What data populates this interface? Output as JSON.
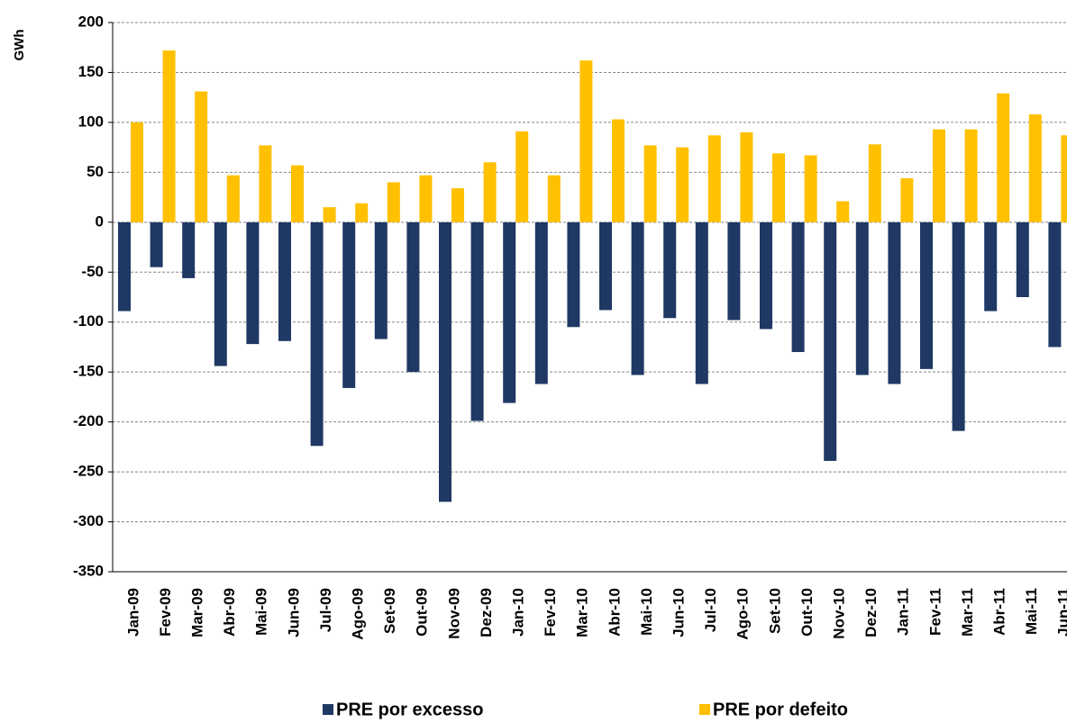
{
  "chart_data": {
    "type": "bar",
    "y_label": "GWh",
    "categories": [
      "Jan-09",
      "Fev-09",
      "Mar-09",
      "Abr-09",
      "Mai-09",
      "Jun-09",
      "Jul-09",
      "Ago-09",
      "Set-09",
      "Out-09",
      "Nov-09",
      "Dez-09",
      "Jan-10",
      "Fev-10",
      "Mar-10",
      "Abr-10",
      "Mai-10",
      "Jun-10",
      "Jul-10",
      "Ago-10",
      "Set-10",
      "Out-10",
      "Nov-10",
      "Dez-10",
      "Jan-11",
      "Fev-11",
      "Mar-11",
      "Abr-11",
      "Mai-11",
      "Jun-11"
    ],
    "series": [
      {
        "name": "PRE por excesso",
        "color": "#1f3864",
        "values": [
          -89,
          -45,
          -56,
          -144,
          -122,
          -119,
          -224,
          -166,
          -117,
          -150,
          -280,
          -199,
          -181,
          -162,
          -105,
          -88,
          -153,
          -96,
          -162,
          -98,
          -107,
          -130,
          -239,
          -153,
          -162,
          -147,
          -209,
          -89,
          -75,
          -125
        ]
      },
      {
        "name": "PRE por defeito",
        "color": "#ffc000",
        "values": [
          100,
          172,
          131,
          47,
          77,
          57,
          15,
          19,
          40,
          47,
          34,
          60,
          91,
          47,
          162,
          103,
          77,
          75,
          87,
          90,
          69,
          67,
          21,
          78,
          44,
          93,
          93,
          129,
          108,
          87
        ]
      }
    ],
    "ylim": [
      -350,
      200
    ],
    "yticks": [
      -350,
      -300,
      -250,
      -200,
      -150,
      -100,
      -50,
      0,
      50,
      100,
      150,
      200
    ],
    "grid": true,
    "legend": "bottom"
  }
}
